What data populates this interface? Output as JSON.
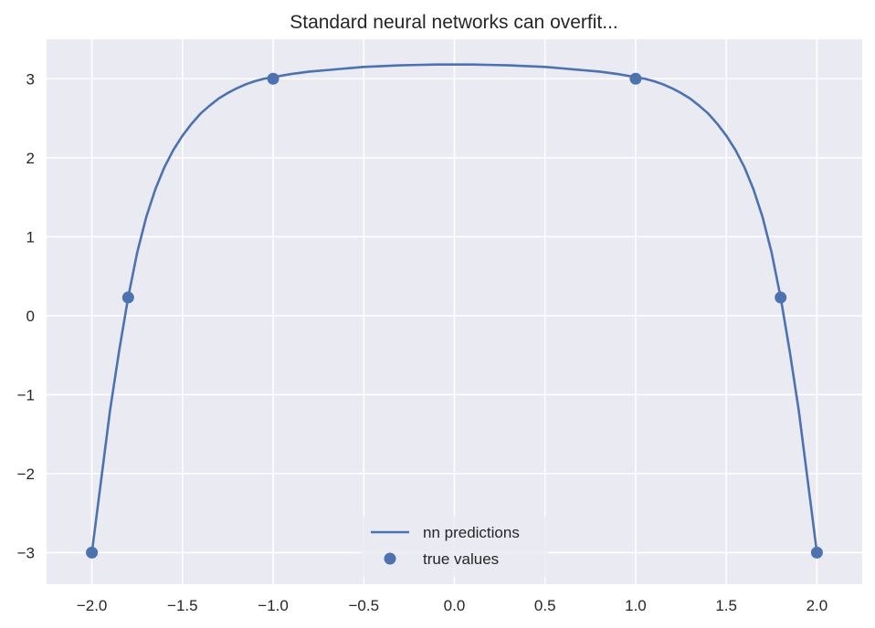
{
  "chart_data": {
    "type": "line",
    "title": "Standard neural networks can overfit...",
    "xlabel": "",
    "ylabel": "",
    "xlim": [
      -2.25,
      2.25
    ],
    "ylim": [
      -3.4,
      3.5
    ],
    "grid": true,
    "legend_position": "lower-center",
    "colors": {
      "background": "#EAEAF2",
      "grid": "#FFFFFF",
      "series": "#4C72B0",
      "text": "#262626"
    },
    "x_ticks": [
      -2.0,
      -1.5,
      -1.0,
      -0.5,
      0.0,
      0.5,
      1.0,
      1.5,
      2.0
    ],
    "x_tick_labels": [
      "−2.0",
      "−1.5",
      "−1.0",
      "−0.5",
      "0.0",
      "0.5",
      "1.0",
      "1.5",
      "2.0"
    ],
    "y_ticks": [
      -3,
      -2,
      -1,
      0,
      1,
      2,
      3
    ],
    "y_tick_labels": [
      "−3",
      "−2",
      "−1",
      "0",
      "1",
      "2",
      "3"
    ],
    "series": [
      {
        "name": "nn predictions",
        "kind": "line",
        "x": [
          -2.0,
          -1.95,
          -1.9,
          -1.85,
          -1.8,
          -1.75,
          -1.7,
          -1.65,
          -1.6,
          -1.55,
          -1.5,
          -1.45,
          -1.4,
          -1.35,
          -1.3,
          -1.25,
          -1.2,
          -1.15,
          -1.1,
          -1.05,
          -1.0,
          -0.9,
          -0.8,
          -0.7,
          -0.6,
          -0.5,
          -0.4,
          -0.3,
          -0.2,
          -0.1,
          0.0,
          0.1,
          0.2,
          0.3,
          0.4,
          0.5,
          0.6,
          0.7,
          0.8,
          0.9,
          1.0,
          1.05,
          1.1,
          1.15,
          1.2,
          1.25,
          1.3,
          1.35,
          1.4,
          1.45,
          1.5,
          1.55,
          1.6,
          1.65,
          1.7,
          1.75,
          1.8,
          1.85,
          1.9,
          1.95,
          2.0
        ],
        "y": [
          -3.0,
          -2.1,
          -1.2,
          -0.45,
          0.23,
          0.8,
          1.25,
          1.6,
          1.88,
          2.1,
          2.28,
          2.43,
          2.56,
          2.66,
          2.75,
          2.82,
          2.88,
          2.93,
          2.97,
          3.0,
          3.02,
          3.06,
          3.09,
          3.11,
          3.13,
          3.15,
          3.16,
          3.17,
          3.175,
          3.18,
          3.18,
          3.18,
          3.175,
          3.17,
          3.16,
          3.15,
          3.13,
          3.11,
          3.09,
          3.06,
          3.02,
          3.0,
          2.97,
          2.93,
          2.88,
          2.82,
          2.75,
          2.66,
          2.56,
          2.43,
          2.28,
          2.1,
          1.88,
          1.6,
          1.25,
          0.8,
          0.23,
          -0.45,
          -1.2,
          -2.1,
          -3.0
        ]
      },
      {
        "name": "true values",
        "kind": "scatter",
        "x": [
          -2.0,
          -1.8,
          -1.0,
          1.0,
          1.8,
          2.0
        ],
        "y": [
          -3.0,
          0.23,
          3.0,
          3.0,
          0.23,
          -3.0
        ]
      }
    ]
  }
}
